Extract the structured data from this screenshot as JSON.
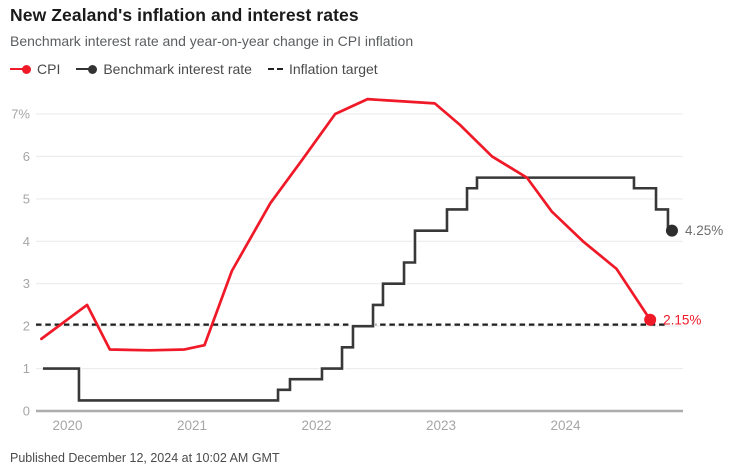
{
  "header": {
    "title": "New Zealand's inflation and interest rates",
    "subtitle": "Benchmark interest rate and year-on-year change in CPI inflation"
  },
  "legend": {
    "items": [
      {
        "label": "CPI",
        "marker": "line-dot",
        "color": "#ef1928"
      },
      {
        "label": "Benchmark interest rate",
        "marker": "line-dot",
        "color": "#333333"
      },
      {
        "label": "Inflation target",
        "marker": "dashes",
        "color": "#222222"
      }
    ]
  },
  "footer": {
    "published": "Published December 12, 2024 at 10:02 AM GMT"
  },
  "colors": {
    "cpi_red": "#ef1928",
    "rate_dark": "#383838",
    "target_dash": "#1f1f1f",
    "grid": "#e9e9e9",
    "axis_zero": "#adadad",
    "tick_text": "#a6a6a6",
    "end_label_gray": "#6e6e6e"
  },
  "chart_data": {
    "type": "line",
    "title": "New Zealand's inflation and interest rates",
    "subtitle": "Benchmark interest rate and year-on-year change in CPI inflation",
    "x_axis": {
      "unit": "year",
      "range": [
        2019.75,
        2024.94
      ],
      "ticks": [
        {
          "t": 2020,
          "label": "2020"
        },
        {
          "t": 2021,
          "label": "2021"
        },
        {
          "t": 2022,
          "label": "2022"
        },
        {
          "t": 2023,
          "label": "2023"
        },
        {
          "t": 2024,
          "label": "2024"
        }
      ]
    },
    "y_axis": {
      "unit": "percent",
      "range": [
        0,
        7.4
      ],
      "grid": true,
      "ticks": [
        {
          "v": 0,
          "label": "0"
        },
        {
          "v": 1,
          "label": "1"
        },
        {
          "v": 2,
          "label": "2"
        },
        {
          "v": 3,
          "label": "3"
        },
        {
          "v": 4,
          "label": "4"
        },
        {
          "v": 5,
          "label": "5"
        },
        {
          "v": 6,
          "label": "6"
        },
        {
          "v": 7,
          "label": "7%"
        }
      ]
    },
    "inflation_target": {
      "value": 2,
      "style": "dashed"
    },
    "series": [
      {
        "name": "Benchmark interest rate",
        "kind": "step",
        "color": "#383838",
        "dot_color": "#2d2d2d",
        "end_label": "4.25%",
        "end_label_color": "#6e6e6e",
        "end_t": 2024.855,
        "points": [
          [
            2019.803,
            1.0
          ],
          [
            2020.092,
            0.25
          ],
          [
            2021.691,
            0.5
          ],
          [
            2021.787,
            0.75
          ],
          [
            2022.044,
            1.0
          ],
          [
            2022.205,
            1.5
          ],
          [
            2022.293,
            2.0
          ],
          [
            2022.454,
            2.5
          ],
          [
            2022.534,
            3.0
          ],
          [
            2022.703,
            3.5
          ],
          [
            2022.791,
            4.25
          ],
          [
            2023.048,
            4.75
          ],
          [
            2023.209,
            5.25
          ],
          [
            2023.289,
            5.5
          ],
          [
            2024.55,
            5.25
          ],
          [
            2024.727,
            4.75
          ],
          [
            2024.823,
            4.25
          ]
        ]
      },
      {
        "name": "CPI",
        "kind": "linear",
        "color": "#ef1928",
        "dot_color": "#ef1928",
        "end_label": "2.15%",
        "end_label_color": "#ef1928",
        "points": [
          [
            2019.79,
            1.7
          ],
          [
            2020.157,
            2.5
          ],
          [
            2020.34,
            1.45
          ],
          [
            2020.66,
            1.43
          ],
          [
            2020.94,
            1.45
          ],
          [
            2021.1,
            1.55
          ],
          [
            2021.32,
            3.3
          ],
          [
            2021.63,
            4.9
          ],
          [
            2021.88,
            5.9
          ],
          [
            2022.15,
            7.0
          ],
          [
            2022.41,
            7.35
          ],
          [
            2022.68,
            7.3
          ],
          [
            2022.95,
            7.25
          ],
          [
            2023.15,
            6.75
          ],
          [
            2023.41,
            6.0
          ],
          [
            2023.69,
            5.5
          ],
          [
            2023.89,
            4.7
          ],
          [
            2024.14,
            4.0
          ],
          [
            2024.41,
            3.35
          ],
          [
            2024.68,
            2.15
          ]
        ]
      }
    ]
  }
}
